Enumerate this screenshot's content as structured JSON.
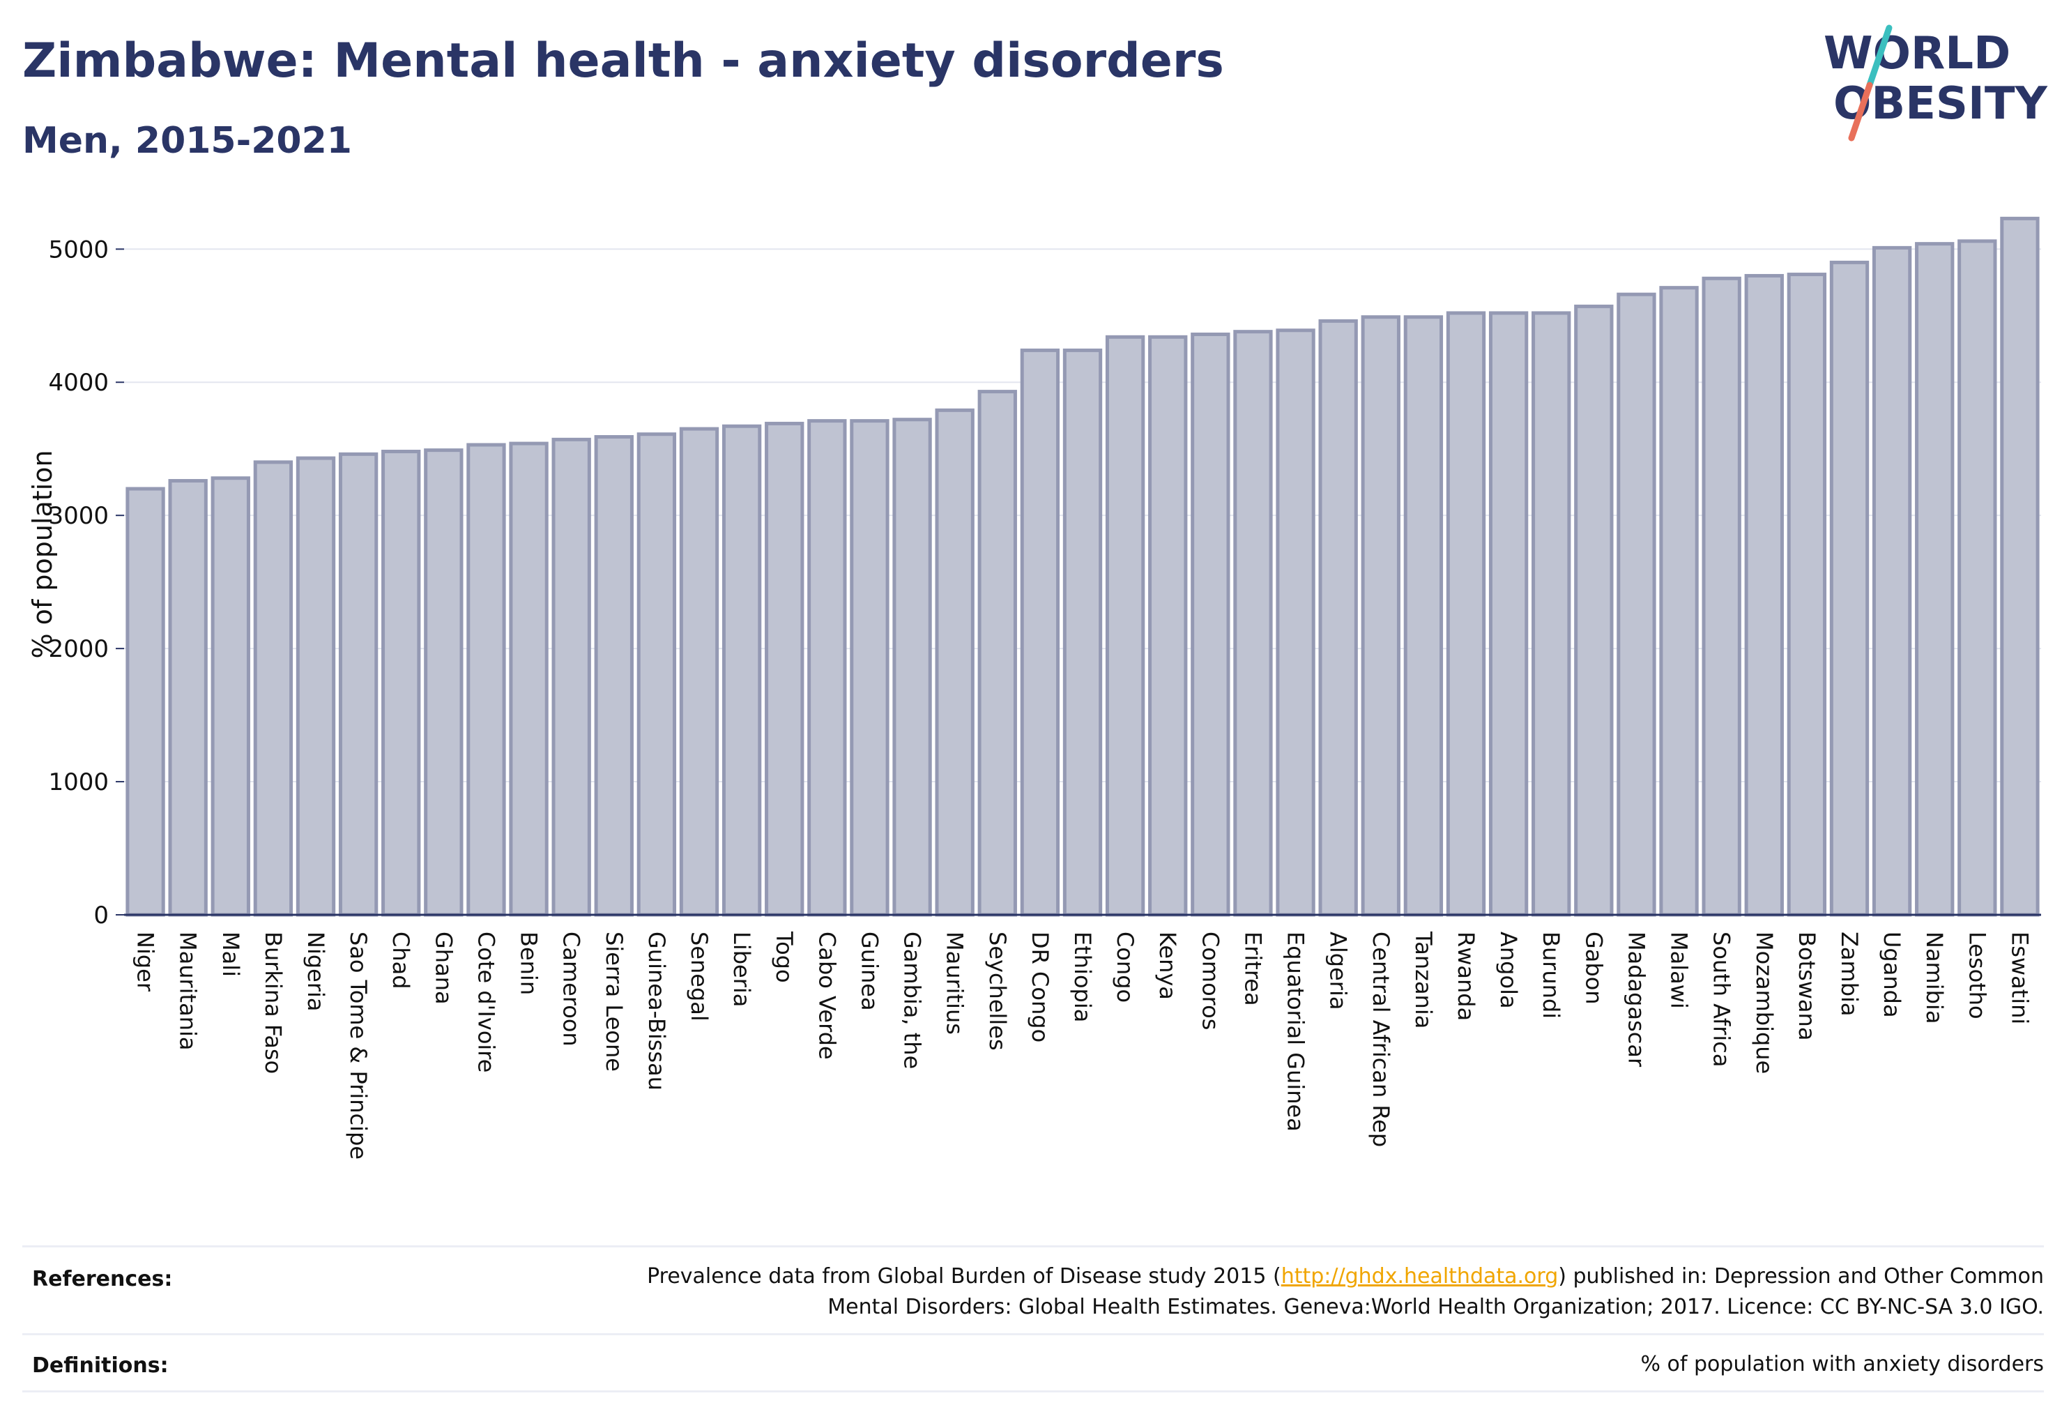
{
  "header": {
    "title": "Zimbabwe: Mental health - anxiety disorders",
    "subtitle": "Men, 2015-2021"
  },
  "logo": {
    "line1": "WORLD",
    "line2": "OBESITY",
    "text_color": "#2a3566",
    "slash_color_top": "#3bbfbf",
    "slash_color_bottom": "#e8705a"
  },
  "colors": {
    "bar_fill": "#bfc3d2",
    "bar_stroke": "#9499b3",
    "grid": "#e3e6ef",
    "axis": "#2a3566"
  },
  "chart_data": {
    "type": "bar",
    "ylabel": "% of population",
    "ylim": [
      0,
      5300
    ],
    "yticks": [
      0,
      1000,
      2000,
      3000,
      4000,
      5000
    ],
    "grid": true,
    "categories": [
      "Niger",
      "Mauritania",
      "Mali",
      "Burkina Faso",
      "Nigeria",
      "Sao Tome & Principe",
      "Chad",
      "Ghana",
      "Cote d'Ivoire",
      "Benin",
      "Cameroon",
      "Sierra Leone",
      "Guinea-Bissau",
      "Senegal",
      "Liberia",
      "Togo",
      "Cabo Verde",
      "Guinea",
      "Gambia, the",
      "Mauritius",
      "Seychelles",
      "DR Congo",
      "Ethiopia",
      "Congo",
      "Kenya",
      "Comoros",
      "Eritrea",
      "Equatorial Guinea",
      "Algeria",
      "Central African Rep",
      "Tanzania",
      "Rwanda",
      "Angola",
      "Burundi",
      "Gabon",
      "Madagascar",
      "Malawi",
      "South Africa",
      "Mozambique",
      "Botswana",
      "Zambia",
      "Uganda",
      "Namibia",
      "Lesotho",
      "Eswatini"
    ],
    "values": [
      3200,
      3260,
      3280,
      3400,
      3430,
      3460,
      3480,
      3490,
      3530,
      3540,
      3570,
      3590,
      3610,
      3650,
      3670,
      3690,
      3710,
      3710,
      3720,
      3790,
      3930,
      4240,
      4240,
      4340,
      4340,
      4360,
      4380,
      4390,
      4460,
      4490,
      4490,
      4520,
      4520,
      4520,
      4570,
      4660,
      4710,
      4780,
      4800,
      4810,
      4900,
      5010,
      5040,
      5060,
      5230
    ]
  },
  "footer": {
    "references_label": "References:",
    "references_line1_prefix": "Prevalence data from Global Burden of Disease study 2015 (",
    "references_link": "http://ghdx.healthdata.org",
    "references_line1_suffix": ") published in: Depression and Other Common",
    "references_line2": "Mental Disorders: Global Health Estimates. Geneva:World Health Organization; 2017. Licence: CC BY-NC-SA 3.0 IGO.",
    "definitions_label": "Definitions:",
    "definitions_text": "% of population with anxiety disorders"
  }
}
